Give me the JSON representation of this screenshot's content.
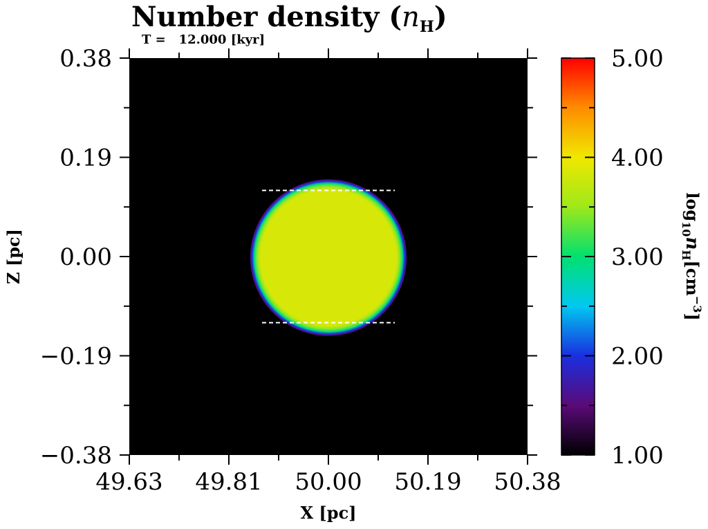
{
  "chart_data": {
    "type": "heatmap",
    "title": "Number density (",
    "title_symbol": "n",
    "title_symbol_sub": "H",
    "title_close": ")",
    "subtitle": "T =   12.000 [kyr]",
    "xlabel": "X [pc]",
    "ylabel": "Z [pc]",
    "xlim": [
      49.625,
      50.375
    ],
    "ylim": [
      -0.375,
      0.375
    ],
    "x_ticks": [
      {
        "value": 49.625,
        "label": "49.63"
      },
      {
        "value": 49.8125,
        "label": "49.81"
      },
      {
        "value": 50.0,
        "label": "50.00"
      },
      {
        "value": 50.1875,
        "label": "50.19"
      },
      {
        "value": 50.375,
        "label": "50.38"
      }
    ],
    "y_ticks": [
      {
        "value": 0.375,
        "label": "0.38"
      },
      {
        "value": 0.1875,
        "label": "0.19"
      },
      {
        "value": 0.0,
        "label": "0.00"
      },
      {
        "value": -0.1875,
        "label": "−0.19"
      },
      {
        "value": -0.375,
        "label": "−0.38"
      }
    ],
    "colorbar": {
      "label_prefix": "log",
      "label_sub": "10",
      "label_symbol": "n",
      "label_symbol_sub": "H",
      "label_unit": "[cm",
      "label_unit_sup": "−3",
      "label_unit_close": "]",
      "range": [
        1.0,
        5.0
      ],
      "ticks": [
        {
          "value": 5.0,
          "label": "5.00"
        },
        {
          "value": 4.0,
          "label": "4.00"
        },
        {
          "value": 3.0,
          "label": "3.00"
        },
        {
          "value": 2.0,
          "label": "2.00"
        },
        {
          "value": 1.0,
          "label": "1.00"
        }
      ]
    },
    "background_value": 1.0,
    "cloud": {
      "center_x": 50.0,
      "center_z": -0.002,
      "radius_pc": 0.146,
      "core_radius_pc": 0.128,
      "core_log_density": 3.85,
      "shell_log_density": 3.45,
      "edge_log_density": 2.0
    },
    "dashed_lines": [
      {
        "z": 0.125,
        "x_start": 49.875,
        "x_end": 50.125
      },
      {
        "z": -0.125,
        "x_start": 49.875,
        "x_end": 50.125
      }
    ]
  },
  "colors": {
    "background": "#000000",
    "dashed_line": "#ffffff",
    "colormap": [
      "#000000",
      "#5a0a78",
      "#1a2fe0",
      "#00c8f0",
      "#00e070",
      "#9ee81a",
      "#f0e800",
      "#ff8c00",
      "#ff0000"
    ]
  }
}
